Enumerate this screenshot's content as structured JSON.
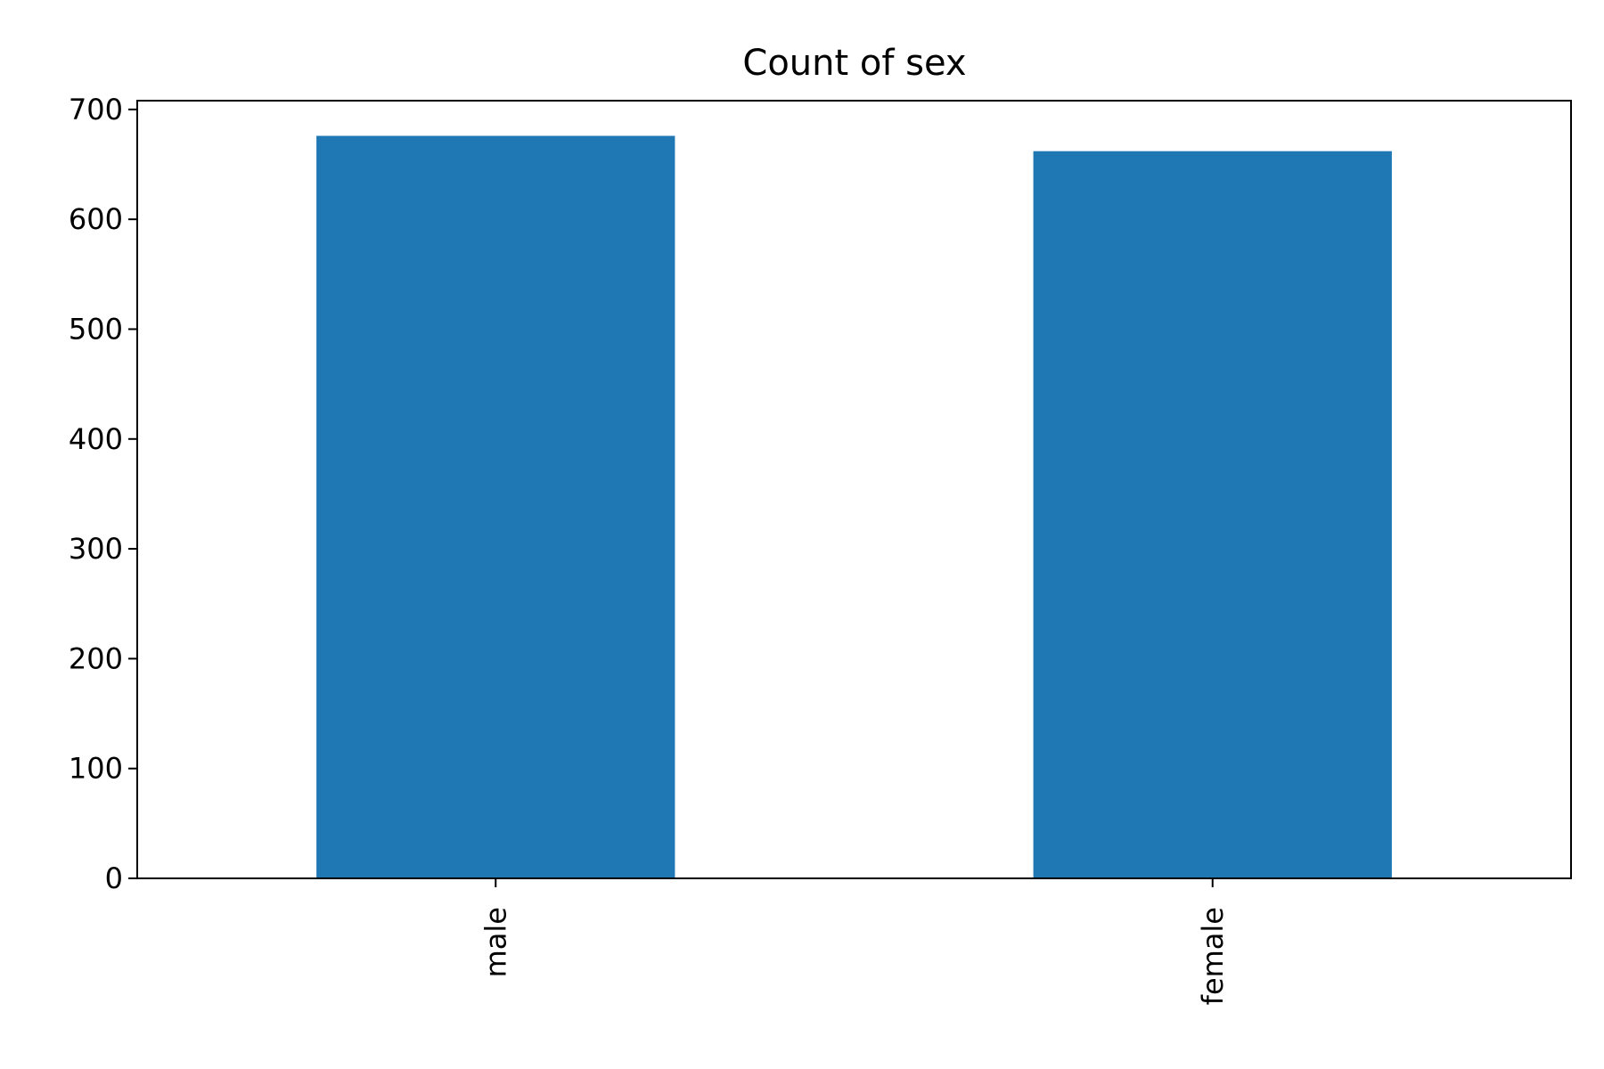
{
  "chart_data": {
    "type": "bar",
    "title": "Count of sex",
    "xlabel": "",
    "ylabel": "",
    "categories": [
      "male",
      "female"
    ],
    "values": [
      676,
      662
    ],
    "ylim": [
      0,
      708
    ],
    "yticks": [
      0,
      100,
      200,
      300,
      400,
      500,
      600,
      700
    ],
    "ytick_labels": [
      "0",
      "100",
      "200",
      "300",
      "400",
      "500",
      "600",
      "700"
    ],
    "x_tick_rotation": "vertical",
    "grid": false,
    "legend": "none",
    "bar_color": "#1f77b4"
  }
}
